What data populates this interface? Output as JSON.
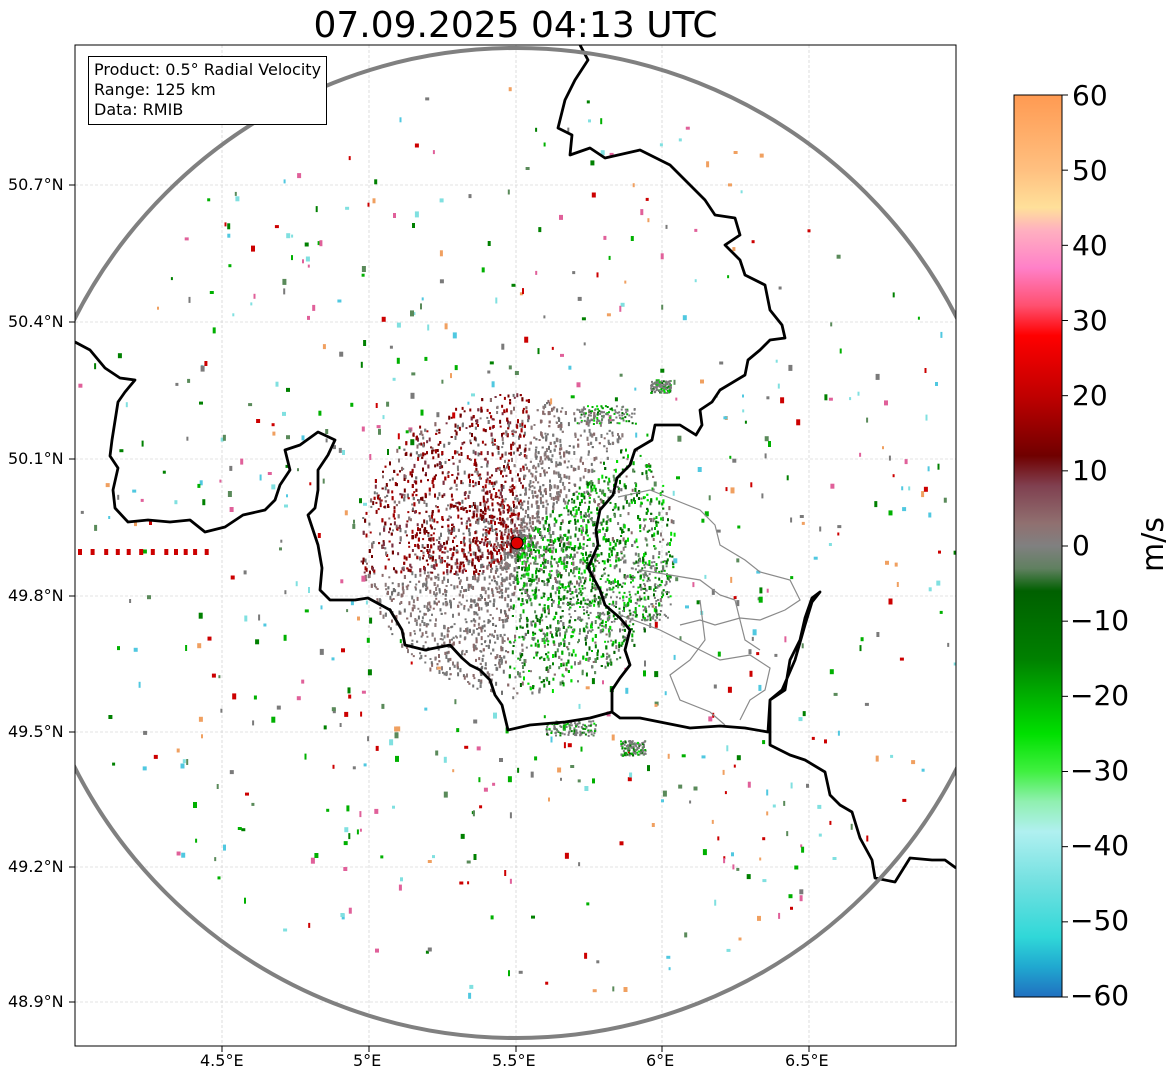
{
  "title": "07.09.2025 04:13 UTC",
  "info": {
    "product": "Product: 0.5° Radial Velocity",
    "range": "Range: 125 km",
    "data": "Data: RMIB"
  },
  "axes": {
    "x_ticks": [
      "4.5°E",
      "5°E",
      "5.5°E",
      "6°E",
      "6.5°E"
    ],
    "y_ticks": [
      "50.7°N",
      "50.4°N",
      "50.1°N",
      "49.8°N",
      "49.5°N",
      "49.2°N",
      "48.9°N"
    ]
  },
  "colorbar": {
    "unit": "m/s",
    "tick_labels": [
      "60",
      "50",
      "40",
      "30",
      "20",
      "10",
      "0",
      "−10",
      "−20",
      "−30",
      "−40",
      "−50",
      "−60"
    ],
    "range": [
      -60,
      60
    ],
    "stops": [
      {
        "value": 60,
        "color": "#ff9a52"
      },
      {
        "value": 50,
        "color": "#ffc080"
      },
      {
        "value": 45,
        "color": "#ffe09a"
      },
      {
        "value": 42,
        "color": "#ffb0c0"
      },
      {
        "value": 37,
        "color": "#ff80c8"
      },
      {
        "value": 32,
        "color": "#ff5070"
      },
      {
        "value": 28,
        "color": "#ff0000"
      },
      {
        "value": 20,
        "color": "#c00000"
      },
      {
        "value": 12,
        "color": "#700000"
      },
      {
        "value": 8,
        "color": "#804050"
      },
      {
        "value": 3,
        "color": "#907070"
      },
      {
        "value": 0,
        "color": "#808080"
      },
      {
        "value": -3,
        "color": "#608060"
      },
      {
        "value": -6,
        "color": "#006000"
      },
      {
        "value": -15,
        "color": "#008000"
      },
      {
        "value": -25,
        "color": "#00e000"
      },
      {
        "value": -30,
        "color": "#40f040"
      },
      {
        "value": -34,
        "color": "#90f0b0"
      },
      {
        "value": -38,
        "color": "#b0f0f0"
      },
      {
        "value": -45,
        "color": "#70e0e0"
      },
      {
        "value": -52,
        "color": "#30d8d8"
      },
      {
        "value": -56,
        "color": "#20a8d0"
      },
      {
        "value": -60,
        "color": "#2070c0"
      }
    ]
  },
  "colors": {
    "approaching": "#008000",
    "receding": "#8b0000",
    "near_zero": "#7a7a7a",
    "border": "#000000",
    "range_ring": "#808080",
    "radar_site": "#e00000"
  }
}
